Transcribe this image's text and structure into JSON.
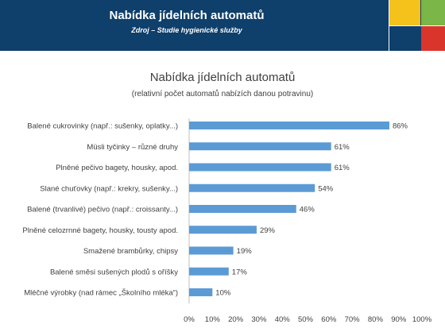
{
  "header": {
    "title": "Nabídka jídelních automatů",
    "subtitle": "Zdroj – Studie hygienické služby"
  },
  "colors": {
    "header_bg": "#0f3f6b",
    "tile_yellow": "#f5c21b",
    "tile_green": "#7ab648",
    "tile_red": "#d9352b",
    "bar": "#5b9bd5"
  },
  "chart_data": {
    "type": "bar",
    "orientation": "horizontal",
    "title": "Nabídka jídelních automatů",
    "subtitle": "(relativní počet automatů nabízích danou potravinu)",
    "categories": [
      "Balené cukrovinky  (např.: sušenky, oplatky...)",
      "Müsli tyčinky – různé druhy",
      "Plněné pečivo bagety, housky, apod.",
      "Slané chuťovky  (např.: krekry, sušenky...)",
      "Balené (trvanlivé) pečivo (např.: croissanty...)",
      "Plněné celozrnné bagety, housky, tousty apod.",
      "Smažené brambůrky, chipsy",
      "Balené směsi sušených plodů s oříšky",
      "Mléčné výrobky  (nad rámec „Školního mléka“)"
    ],
    "values": [
      86,
      61,
      61,
      54,
      46,
      29,
      19,
      17,
      10
    ],
    "value_labels": [
      "86%",
      "61%",
      "61%",
      "54%",
      "46%",
      "29%",
      "19%",
      "17%",
      "10%"
    ],
    "xticks": [
      "0%",
      "10%",
      "20%",
      "30%",
      "40%",
      "50%",
      "60%",
      "70%",
      "80%",
      "90%",
      "100%"
    ],
    "xlim": [
      0,
      100
    ],
    "grid": false,
    "legend": "none"
  }
}
